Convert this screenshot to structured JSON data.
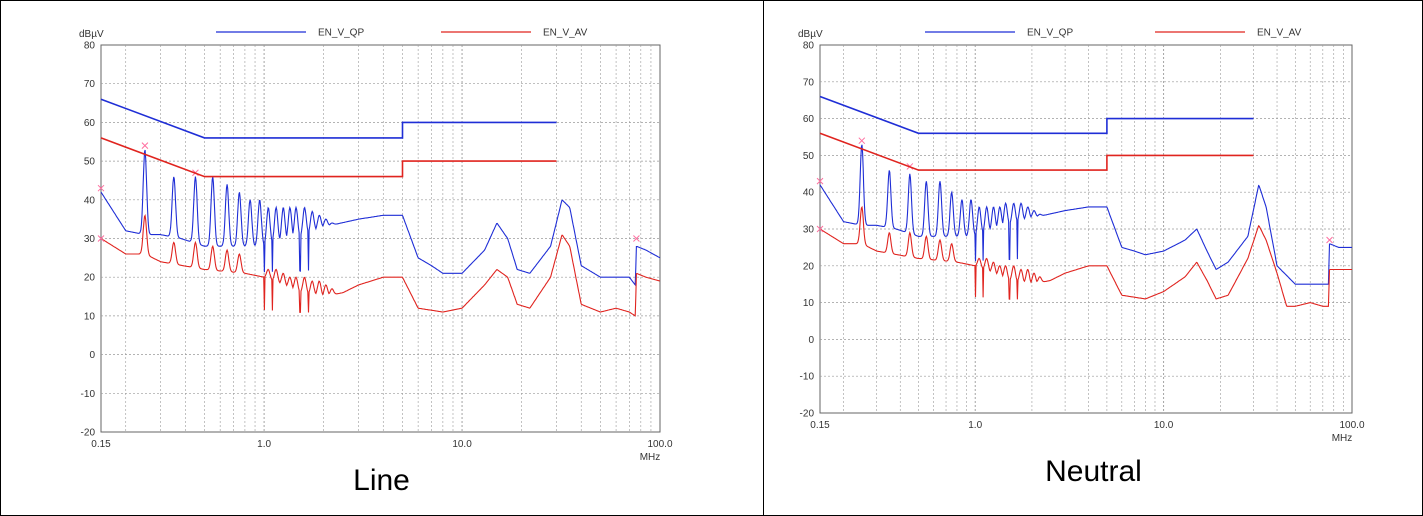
{
  "colors": {
    "qp": "#1f2ed6",
    "av": "#e0241f",
    "marker": "#ff6fa0",
    "grid": "#9a9a9a",
    "axis": "#666666"
  },
  "chart_data": [
    {
      "type": "line",
      "caption": "Line",
      "y_unit": "dBµV",
      "x_unit": "MHz",
      "x_scale": "log",
      "xlim": [
        0.15,
        100
      ],
      "ylim": [
        -20,
        80
      ],
      "yticks": [
        "80",
        "70",
        "60",
        "50",
        "40",
        "30",
        "20",
        "10",
        "0",
        "-10",
        "-20"
      ],
      "xticks": [
        "0.15",
        "1.0",
        "10.0",
        "100.0"
      ],
      "grid": true,
      "legend": "top",
      "limit_lines": [
        {
          "name": "EN_V_QP",
          "color": "qp",
          "points": [
            [
              0.15,
              66
            ],
            [
              0.5,
              56
            ],
            [
              5,
              56
            ],
            [
              5,
              60
            ],
            [
              30,
              60
            ]
          ]
        },
        {
          "name": "EN_V_AV",
          "color": "av",
          "points": [
            [
              0.15,
              56
            ],
            [
              0.5,
              46
            ],
            [
              5,
              46
            ],
            [
              5,
              50
            ],
            [
              30,
              50
            ]
          ]
        }
      ],
      "series": [
        {
          "color": "qp",
          "baseline": [
            [
              0.15,
              42
            ],
            [
              0.2,
              32
            ],
            [
              0.25,
              31
            ],
            [
              0.3,
              31
            ],
            [
              0.38,
              30
            ],
            [
              0.5,
              28
            ],
            [
              0.8,
              28
            ],
            [
              1.0,
              28
            ],
            [
              1.5,
              30
            ],
            [
              2.0,
              33
            ],
            [
              3.0,
              35
            ],
            [
              4.0,
              36
            ],
            [
              5.0,
              36
            ],
            [
              6.0,
              25
            ],
            [
              7.0,
              23
            ],
            [
              8.0,
              21
            ],
            [
              10.0,
              21
            ],
            [
              13.0,
              27
            ],
            [
              15.0,
              34
            ],
            [
              17.0,
              30
            ],
            [
              19.0,
              22
            ],
            [
              22.0,
              21
            ],
            [
              28.0,
              28
            ],
            [
              32.0,
              40
            ],
            [
              35.0,
              38
            ],
            [
              40.0,
              23
            ],
            [
              50.0,
              20
            ],
            [
              60.0,
              20
            ],
            [
              70.0,
              20
            ],
            [
              75.0,
              18
            ],
            [
              76.0,
              28
            ],
            [
              85.0,
              27
            ],
            [
              100.0,
              25
            ]
          ],
          "peaks": [
            [
              0.25,
              53
            ],
            [
              0.35,
              46
            ],
            [
              0.45,
              46
            ],
            [
              0.55,
              46
            ],
            [
              0.65,
              44
            ],
            [
              0.75,
              42
            ],
            [
              0.85,
              40
            ],
            [
              0.95,
              40
            ],
            [
              1.05,
              38
            ],
            [
              1.15,
              38
            ],
            [
              1.25,
              38
            ],
            [
              1.35,
              38
            ],
            [
              1.45,
              38
            ],
            [
              1.6,
              38
            ],
            [
              1.75,
              37
            ],
            [
              1.9,
              36
            ],
            [
              2.05,
              35
            ],
            [
              2.2,
              34
            ]
          ],
          "valley_range": [
            1.0,
            2.3
          ],
          "valley_value": 20,
          "markers": [
            [
              0.15,
              43
            ],
            [
              0.25,
              54
            ],
            [
              0.45,
              47
            ],
            [
              76,
              30
            ]
          ]
        },
        {
          "color": "av",
          "baseline": [
            [
              0.15,
              30
            ],
            [
              0.2,
              26
            ],
            [
              0.25,
              26
            ],
            [
              0.3,
              24
            ],
            [
              0.5,
              22
            ],
            [
              0.8,
              21
            ],
            [
              1.0,
              20
            ],
            [
              1.5,
              16
            ],
            [
              2.0,
              15
            ],
            [
              2.5,
              16
            ],
            [
              3.0,
              18
            ],
            [
              4.0,
              20
            ],
            [
              5.0,
              20
            ],
            [
              6.0,
              12
            ],
            [
              8.0,
              11
            ],
            [
              10.0,
              12
            ],
            [
              13.0,
              18
            ],
            [
              15.0,
              22
            ],
            [
              17.0,
              20
            ],
            [
              19.0,
              13
            ],
            [
              22.0,
              12
            ],
            [
              28.0,
              20
            ],
            [
              32.0,
              31
            ],
            [
              35.0,
              28
            ],
            [
              40.0,
              13
            ],
            [
              50.0,
              11
            ],
            [
              60.0,
              12
            ],
            [
              70.0,
              11
            ],
            [
              75.0,
              10
            ],
            [
              76.0,
              21
            ],
            [
              85.0,
              20
            ],
            [
              100.0,
              19
            ]
          ],
          "peaks": [
            [
              0.25,
              36
            ],
            [
              0.35,
              29
            ],
            [
              0.45,
              29
            ],
            [
              0.55,
              28
            ],
            [
              0.65,
              27
            ],
            [
              0.75,
              26
            ],
            [
              1.05,
              22
            ],
            [
              1.15,
              22
            ],
            [
              1.25,
              21
            ],
            [
              1.35,
              20
            ],
            [
              1.45,
              20
            ],
            [
              1.6,
              20
            ],
            [
              1.75,
              19
            ],
            [
              1.9,
              19
            ],
            [
              2.05,
              18
            ],
            [
              2.2,
              17
            ]
          ],
          "valley_range": [
            1.0,
            2.3
          ],
          "valley_value": 10,
          "markers": [
            [
              0.15,
              30
            ]
          ]
        }
      ]
    },
    {
      "type": "line",
      "caption": "Neutral",
      "y_unit": "dBµV",
      "x_unit": "MHz",
      "x_scale": "log",
      "xlim": [
        0.15,
        100
      ],
      "ylim": [
        -20,
        80
      ],
      "yticks": [
        "80",
        "70",
        "60",
        "50",
        "40",
        "30",
        "20",
        "10",
        "0",
        "-10",
        "-20"
      ],
      "xticks": [
        "0.15",
        "1.0",
        "10.0",
        "100.0"
      ],
      "grid": true,
      "legend": "top",
      "limit_lines": [
        {
          "name": "EN_V_QP",
          "color": "qp",
          "points": [
            [
              0.15,
              66
            ],
            [
              0.5,
              56
            ],
            [
              5,
              56
            ],
            [
              5,
              60
            ],
            [
              30,
              60
            ]
          ]
        },
        {
          "name": "EN_V_AV",
          "color": "av",
          "points": [
            [
              0.15,
              56
            ],
            [
              0.5,
              46
            ],
            [
              5,
              46
            ],
            [
              5,
              50
            ],
            [
              30,
              50
            ]
          ]
        }
      ],
      "series": [
        {
          "color": "qp",
          "baseline": [
            [
              0.15,
              42
            ],
            [
              0.2,
              32
            ],
            [
              0.25,
              31
            ],
            [
              0.3,
              31
            ],
            [
              0.38,
              30
            ],
            [
              0.5,
              28
            ],
            [
              0.8,
              28
            ],
            [
              1.0,
              28
            ],
            [
              1.5,
              31
            ],
            [
              2.0,
              33
            ],
            [
              3.0,
              35
            ],
            [
              4.0,
              36
            ],
            [
              5.0,
              36
            ],
            [
              6.0,
              25
            ],
            [
              7.0,
              24
            ],
            [
              8.0,
              23
            ],
            [
              10.0,
              24
            ],
            [
              13.0,
              27
            ],
            [
              15.0,
              30
            ],
            [
              17.0,
              24
            ],
            [
              19.0,
              19
            ],
            [
              22.0,
              21
            ],
            [
              28.0,
              28
            ],
            [
              32.0,
              42
            ],
            [
              35.0,
              36
            ],
            [
              40.0,
              20
            ],
            [
              50.0,
              15
            ],
            [
              60.0,
              15
            ],
            [
              70.0,
              15
            ],
            [
              75.0,
              15
            ],
            [
              76.0,
              26
            ],
            [
              85.0,
              25
            ],
            [
              100.0,
              25
            ]
          ],
          "peaks": [
            [
              0.25,
              53
            ],
            [
              0.35,
              46
            ],
            [
              0.45,
              45
            ],
            [
              0.55,
              43
            ],
            [
              0.65,
              43
            ],
            [
              0.75,
              40
            ],
            [
              0.85,
              38
            ],
            [
              0.95,
              38
            ],
            [
              1.05,
              36
            ],
            [
              1.15,
              36
            ],
            [
              1.25,
              36
            ],
            [
              1.35,
              36
            ],
            [
              1.45,
              37
            ],
            [
              1.6,
              37
            ],
            [
              1.75,
              37
            ],
            [
              1.9,
              36
            ],
            [
              2.05,
              35
            ],
            [
              2.2,
              34
            ]
          ],
          "valley_range": [
            1.0,
            2.3
          ],
          "valley_value": 20,
          "markers": [
            [
              0.15,
              43
            ],
            [
              0.25,
              54
            ],
            [
              0.45,
              47
            ],
            [
              76,
              27
            ]
          ]
        },
        {
          "color": "av",
          "baseline": [
            [
              0.15,
              30
            ],
            [
              0.2,
              26
            ],
            [
              0.25,
              26
            ],
            [
              0.3,
              24
            ],
            [
              0.5,
              22
            ],
            [
              0.8,
              21
            ],
            [
              1.0,
              20
            ],
            [
              1.5,
              16
            ],
            [
              2.0,
              15
            ],
            [
              2.5,
              16
            ],
            [
              3.0,
              18
            ],
            [
              4.0,
              20
            ],
            [
              5.0,
              20
            ],
            [
              6.0,
              12
            ],
            [
              8.0,
              11
            ],
            [
              10.0,
              13
            ],
            [
              13.0,
              17
            ],
            [
              15.0,
              21
            ],
            [
              17.0,
              16
            ],
            [
              19.0,
              11
            ],
            [
              22.0,
              12
            ],
            [
              28.0,
              22
            ],
            [
              32.0,
              31
            ],
            [
              35.0,
              27
            ],
            [
              40.0,
              18
            ],
            [
              45.0,
              9
            ],
            [
              50.0,
              9
            ],
            [
              60.0,
              10
            ],
            [
              70.0,
              9
            ],
            [
              75.0,
              9
            ],
            [
              76.0,
              19
            ],
            [
              85.0,
              19
            ],
            [
              100.0,
              19
            ]
          ],
          "peaks": [
            [
              0.25,
              36
            ],
            [
              0.35,
              29
            ],
            [
              0.45,
              29
            ],
            [
              0.55,
              28
            ],
            [
              0.65,
              27
            ],
            [
              0.75,
              26
            ],
            [
              1.05,
              22
            ],
            [
              1.15,
              22
            ],
            [
              1.25,
              21
            ],
            [
              1.35,
              20
            ],
            [
              1.45,
              20
            ],
            [
              1.6,
              20
            ],
            [
              1.75,
              19
            ],
            [
              1.9,
              19
            ],
            [
              2.05,
              18
            ],
            [
              2.2,
              17
            ]
          ],
          "valley_range": [
            1.0,
            2.3
          ],
          "valley_value": 10,
          "markers": [
            [
              0.15,
              30
            ]
          ]
        }
      ]
    }
  ]
}
